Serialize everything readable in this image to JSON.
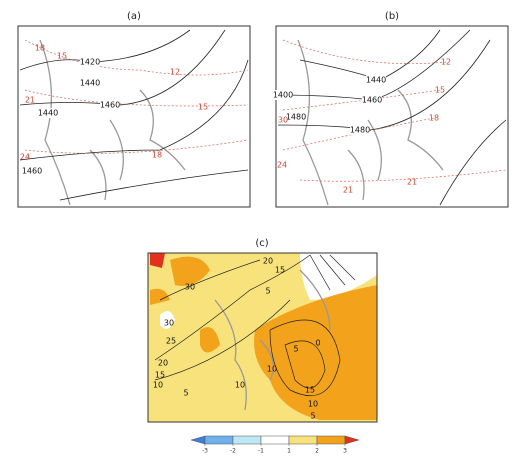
{
  "panels": [
    {
      "label": "(a)",
      "contour_labels": [
        1420,
        1440,
        1460,
        1460,
        1440
      ],
      "temperature_labels": [
        18,
        15,
        12,
        15,
        18,
        21,
        24
      ]
    },
    {
      "label": "(b)",
      "contour_labels": [
        1440,
        1460,
        1480,
        1480,
        1400
      ],
      "temperature_labels": [
        12,
        15,
        18,
        21,
        21,
        24,
        30
      ]
    },
    {
      "label": "(c)",
      "contour_labels": [
        20,
        15,
        30,
        5,
        30,
        25,
        20,
        15,
        10,
        5,
        10,
        10,
        5,
        0,
        15,
        10,
        5
      ]
    }
  ],
  "colorbar": {
    "ticks": [
      -3,
      -2,
      -1,
      1,
      2,
      3
    ],
    "colors": [
      "#3f7fdc",
      "#6fb0ec",
      "#bfe6f4",
      "#ffffff",
      "#f8e27c",
      "#f3a21c",
      "#e2321e"
    ]
  }
}
